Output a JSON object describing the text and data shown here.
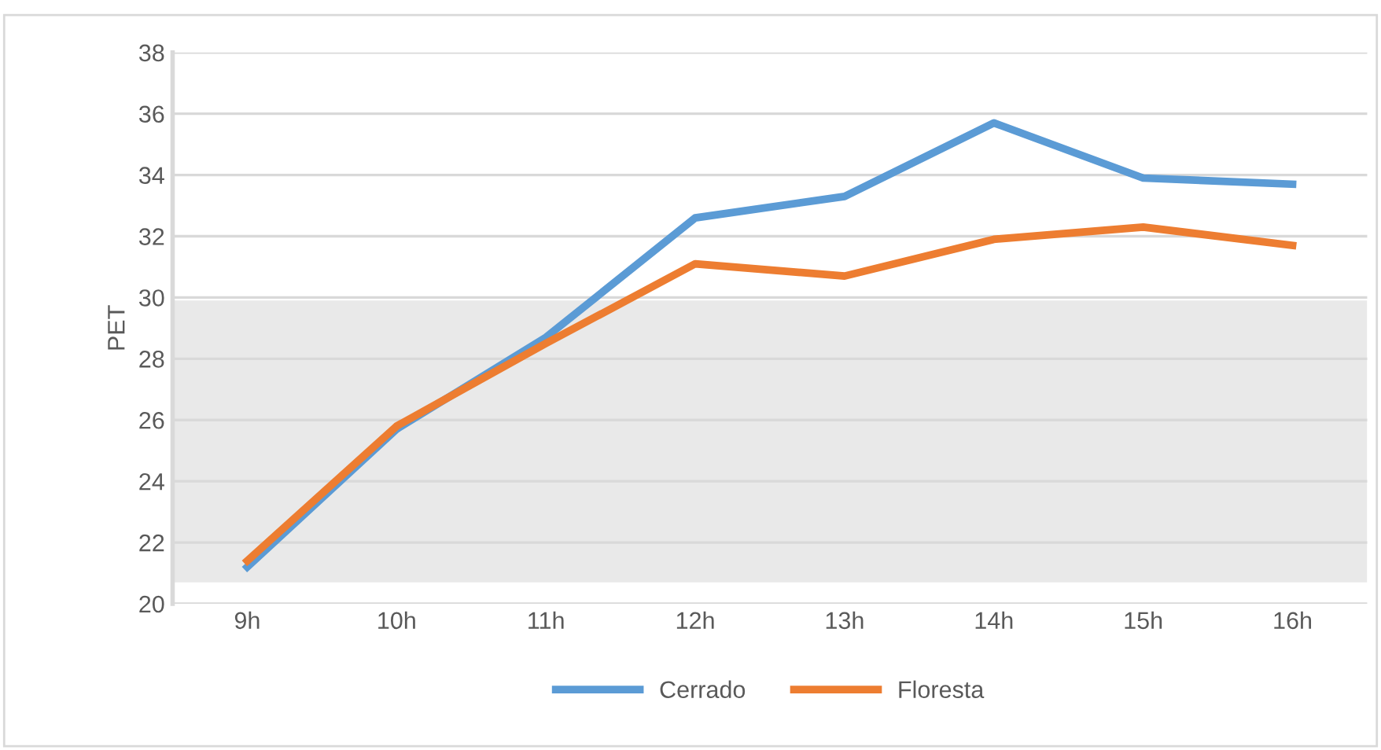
{
  "chart_data": {
    "type": "line",
    "ylabel": "PET",
    "categories": [
      "9h",
      "10h",
      "11h",
      "12h",
      "13h",
      "14h",
      "15h",
      "16h"
    ],
    "series": [
      {
        "name": "Cerrado",
        "color": "#5b9bd5",
        "values": [
          21.2,
          25.7,
          28.7,
          32.6,
          33.3,
          35.7,
          33.9,
          33.7
        ]
      },
      {
        "name": "Floresta",
        "color": "#ed7d31",
        "values": [
          21.4,
          25.8,
          28.5,
          31.1,
          30.7,
          31.9,
          32.3,
          31.7
        ]
      }
    ],
    "ylim": [
      20,
      38
    ],
    "yticks": [
      20,
      22,
      24,
      26,
      28,
      30,
      32,
      34,
      36,
      38
    ],
    "grid": "y",
    "legend": "bottom",
    "marker": "none",
    "line_style": "solid",
    "bands": [
      {
        "axis": "y",
        "from": 20.7,
        "to": 29.9,
        "color": "#e9e9e9"
      }
    ]
  }
}
